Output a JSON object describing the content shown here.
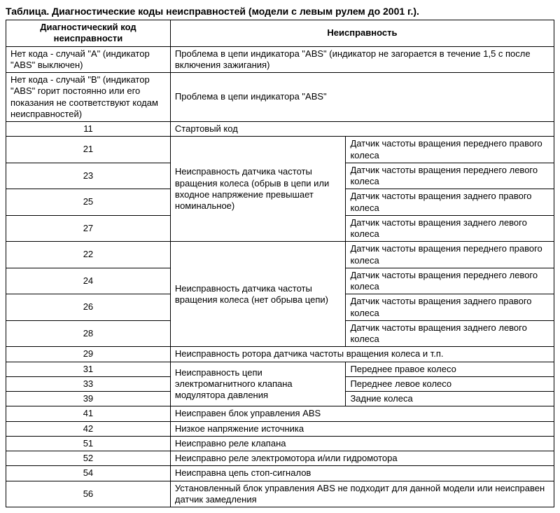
{
  "title": "Таблица. Диагностические коды неисправностей (модели с левым рулем до 2001 г.).",
  "header": {
    "code": "Диагностический код неисправности",
    "fault": "Неисправность"
  },
  "rowA": {
    "code": "Нет кода - случай \"А\" (индикатор \"ABS\" выключен)",
    "fault": "Проблема в цепи индикатора \"ABS\" (индикатор не загорается в течение 1,5 с после включения зажигания)"
  },
  "rowB": {
    "code": "Нет кода - случай \"В\" (индикатор \"ABS\" горит постоянно или его показания не соответствуют кодам неисправностей)",
    "fault": "Проблема в цепи индикатора \"ABS\""
  },
  "row11": {
    "code": "11",
    "fault": "Стартовый код"
  },
  "group1": {
    "mid": "Неисправность датчика частоты вращения колеса (обрыв в цепи или входное напряжение превышает номинальное)",
    "r21": {
      "code": "21",
      "right": "Датчик частоты вращения переднего правого колеса"
    },
    "r23": {
      "code": "23",
      "right": "Датчик частоты вращения переднего левого колеса"
    },
    "r25": {
      "code": "25",
      "right": "Датчик частоты вращения заднего правого колеса"
    },
    "r27": {
      "code": "27",
      "right": "Датчик частоты вращения заднего левого колеса"
    }
  },
  "group2": {
    "mid": "Неисправность датчика частоты вращения колеса (нет обрыва цепи)",
    "r22": {
      "code": "22",
      "right": "Датчик частоты вращения переднего правого колеса"
    },
    "r24": {
      "code": "24",
      "right": "Датчик частоты вращения переднего левого колеса"
    },
    "r26": {
      "code": "26",
      "right": "Датчик частоты вращения заднего правого колеса"
    },
    "r28": {
      "code": "28",
      "right": "Датчик частоты вращения заднего левого колеса"
    }
  },
  "row29": {
    "code": "29",
    "fault": "Неисправность ротора датчика частоты вращения колеса и т.п."
  },
  "group3": {
    "mid": "Неисправность цепи электромагнитного клапана модулятора давления",
    "r31": {
      "code": "31",
      "right": "Переднее правое колесо"
    },
    "r33": {
      "code": "33",
      "right": "Переднее левое колесо"
    },
    "r39": {
      "code": "39",
      "right": "Задние колеса"
    }
  },
  "row41": {
    "code": "41",
    "fault": "Неисправен блок управления ABS"
  },
  "row42": {
    "code": "42",
    "fault": "Низкое напряжение источника"
  },
  "row51": {
    "code": "51",
    "fault": "Неисправно реле клапана"
  },
  "row52": {
    "code": "52",
    "fault": "Неисправно реле электромотора и/или гидромотора"
  },
  "row54": {
    "code": "54",
    "fault": "Неисправна цепь стоп-сигналов"
  },
  "row56": {
    "code": "56",
    "fault": "Установленный блок управления ABS не подходит для данной модели или неисправен датчик замедления"
  }
}
